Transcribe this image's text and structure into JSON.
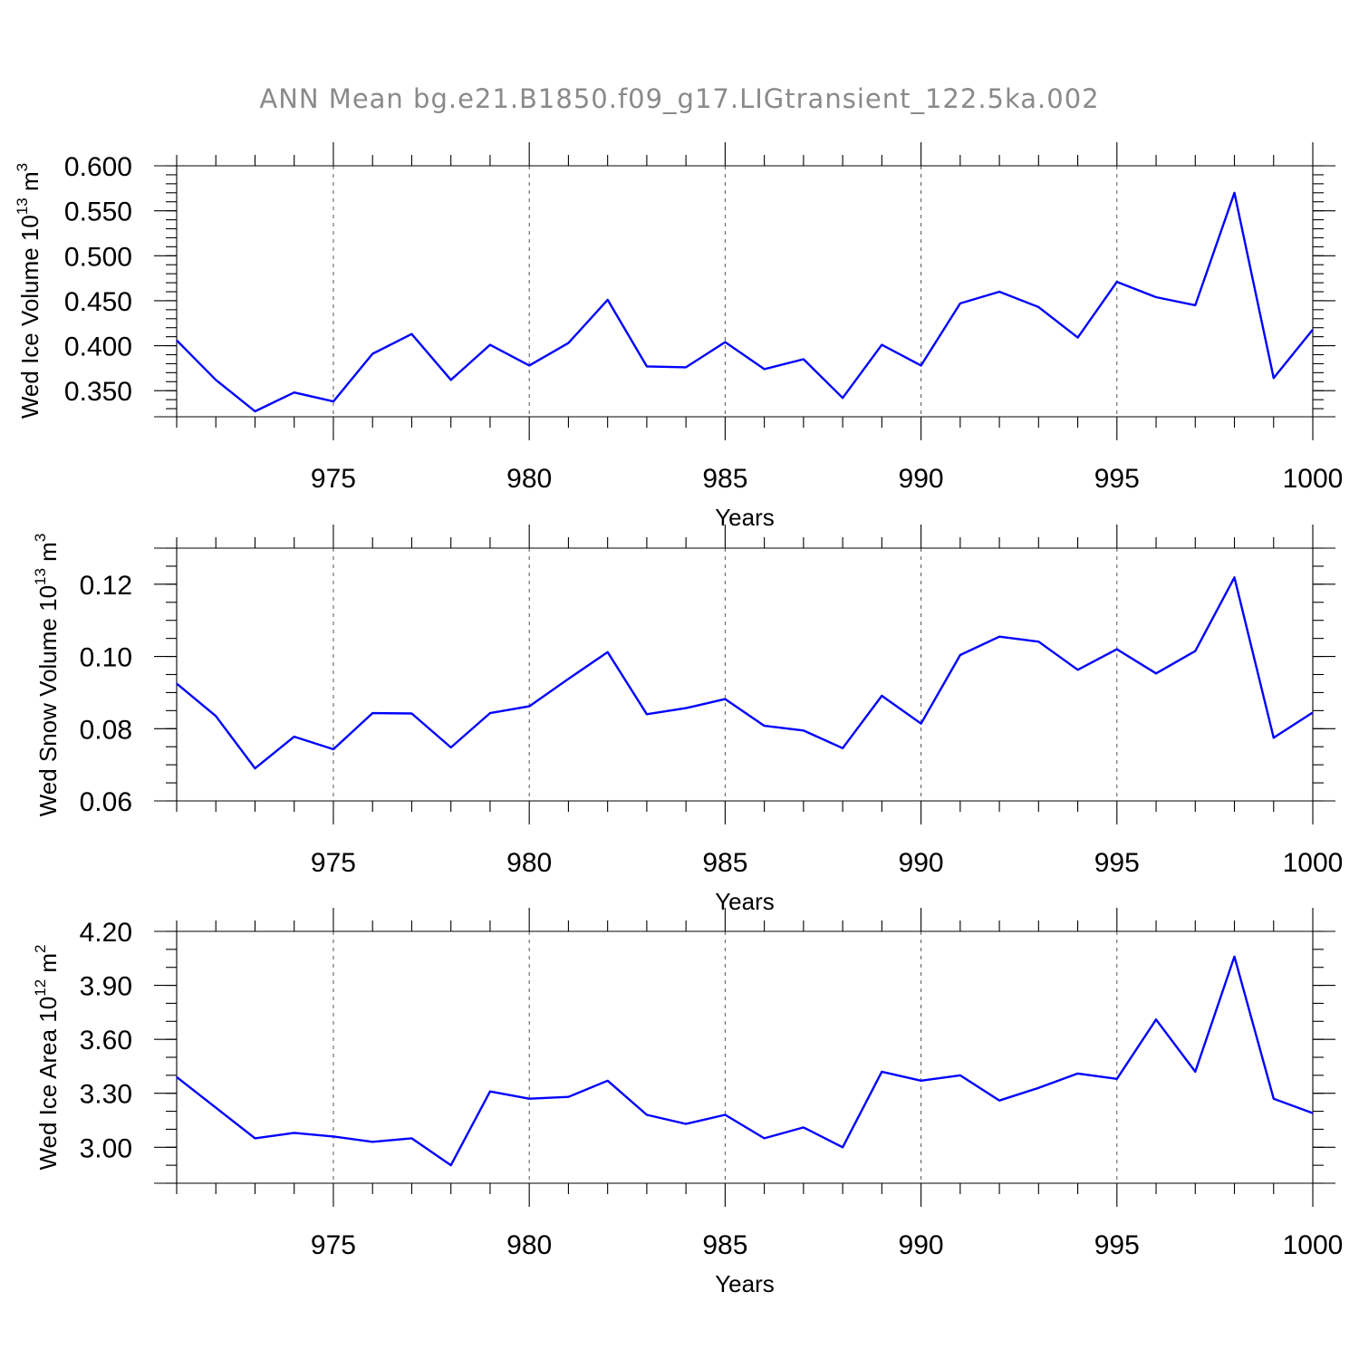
{
  "title": "ANN Mean bg.e21.B1850.f09_g17.LIGtransient_122.5ka.002",
  "chart_data": [
    {
      "type": "line",
      "ylabel": "Wed Ice Volume",
      "ylabel_unit_base": "10",
      "ylabel_unit_exp": "13",
      "ylabel_unit_suffix": "m",
      "ylabel_unit_suffix_exp": "3",
      "xlabel": "Years",
      "xlim": [
        971,
        1000
      ],
      "ylim": [
        0.321,
        0.6
      ],
      "x_ticks": [
        975,
        980,
        985,
        990,
        995,
        1000
      ],
      "x_tick_labels": [
        "975",
        "980",
        "985",
        "990",
        "995",
        "1000"
      ],
      "y_ticks": [
        0.35,
        0.4,
        0.45,
        0.5,
        0.55,
        0.6
      ],
      "y_tick_labels": [
        "0.350",
        "0.400",
        "0.450",
        "0.500",
        "0.550",
        "0.600"
      ],
      "y_minor_step": 0.01,
      "grid": "dashed vertical at major x ticks",
      "series": [
        {
          "color": "#0000ff",
          "x": [
            971,
            972,
            973,
            974,
            975,
            976,
            977,
            978,
            979,
            980,
            981,
            982,
            983,
            984,
            985,
            986,
            987,
            988,
            989,
            990,
            991,
            992,
            993,
            994,
            995,
            996,
            997,
            998,
            999,
            1000
          ],
          "values": [
            0.406,
            0.362,
            0.327,
            0.348,
            0.338,
            0.391,
            0.413,
            0.362,
            0.401,
            0.378,
            0.403,
            0.451,
            0.377,
            0.376,
            0.404,
            0.374,
            0.385,
            0.342,
            0.401,
            0.378,
            0.447,
            0.46,
            0.443,
            0.409,
            0.471,
            0.454,
            0.445,
            0.57,
            0.364,
            0.418
          ]
        }
      ]
    },
    {
      "type": "line",
      "ylabel": "Wed Snow Volume",
      "ylabel_unit_base": "10",
      "ylabel_unit_exp": "13",
      "ylabel_unit_suffix": "m",
      "ylabel_unit_suffix_exp": "3",
      "xlabel": "Years",
      "xlim": [
        971,
        1000
      ],
      "ylim": [
        0.06,
        0.13
      ],
      "x_ticks": [
        975,
        980,
        985,
        990,
        995,
        1000
      ],
      "x_tick_labels": [
        "975",
        "980",
        "985",
        "990",
        "995",
        "1000"
      ],
      "y_ticks": [
        0.06,
        0.08,
        0.1,
        0.12
      ],
      "y_tick_labels": [
        "0.06",
        "0.08",
        "0.10",
        "0.12"
      ],
      "y_minor_step": 0.005,
      "grid": "dashed vertical at major x ticks",
      "series": [
        {
          "color": "#0000ff",
          "x": [
            971,
            972,
            973,
            974,
            975,
            976,
            977,
            978,
            979,
            980,
            981,
            982,
            983,
            984,
            985,
            986,
            987,
            988,
            989,
            990,
            991,
            992,
            993,
            994,
            995,
            996,
            997,
            998,
            999,
            1000
          ],
          "values": [
            0.0925,
            0.0835,
            0.069,
            0.0778,
            0.0743,
            0.0843,
            0.0842,
            0.0748,
            0.0843,
            0.0862,
            0.0938,
            0.1012,
            0.084,
            0.0857,
            0.0882,
            0.0808,
            0.0795,
            0.0746,
            0.0891,
            0.0814,
            0.1004,
            0.1055,
            0.1041,
            0.0963,
            0.102,
            0.0953,
            0.1015,
            0.1219,
            0.0775,
            0.0845
          ]
        }
      ]
    },
    {
      "type": "line",
      "ylabel": "Wed Ice Area",
      "ylabel_unit_base": "10",
      "ylabel_unit_exp": "12",
      "ylabel_unit_suffix": "m",
      "ylabel_unit_suffix_exp": "2",
      "xlabel": "Years",
      "xlim": [
        971,
        1000
      ],
      "ylim": [
        2.8,
        4.2
      ],
      "x_ticks": [
        975,
        980,
        985,
        990,
        995,
        1000
      ],
      "x_tick_labels": [
        "975",
        "980",
        "985",
        "990",
        "995",
        "1000"
      ],
      "y_ticks": [
        3.0,
        3.3,
        3.6,
        3.9,
        4.2
      ],
      "y_tick_labels": [
        "3.00",
        "3.30",
        "3.60",
        "3.90",
        "4.20"
      ],
      "y_minor_step": 0.1,
      "grid": "dashed vertical at major x ticks",
      "series": [
        {
          "color": "#0000ff",
          "x": [
            971,
            972,
            973,
            974,
            975,
            976,
            977,
            978,
            979,
            980,
            981,
            982,
            983,
            984,
            985,
            986,
            987,
            988,
            989,
            990,
            991,
            992,
            993,
            994,
            995,
            996,
            997,
            998,
            999,
            1000
          ],
          "values": [
            3.39,
            3.22,
            3.05,
            3.08,
            3.06,
            3.03,
            3.05,
            2.9,
            3.31,
            3.27,
            3.28,
            3.37,
            3.18,
            3.13,
            3.18,
            3.05,
            3.11,
            3.0,
            3.42,
            3.37,
            3.4,
            3.26,
            3.33,
            3.41,
            3.38,
            3.71,
            3.42,
            4.06,
            3.27,
            3.19
          ]
        }
      ]
    }
  ]
}
